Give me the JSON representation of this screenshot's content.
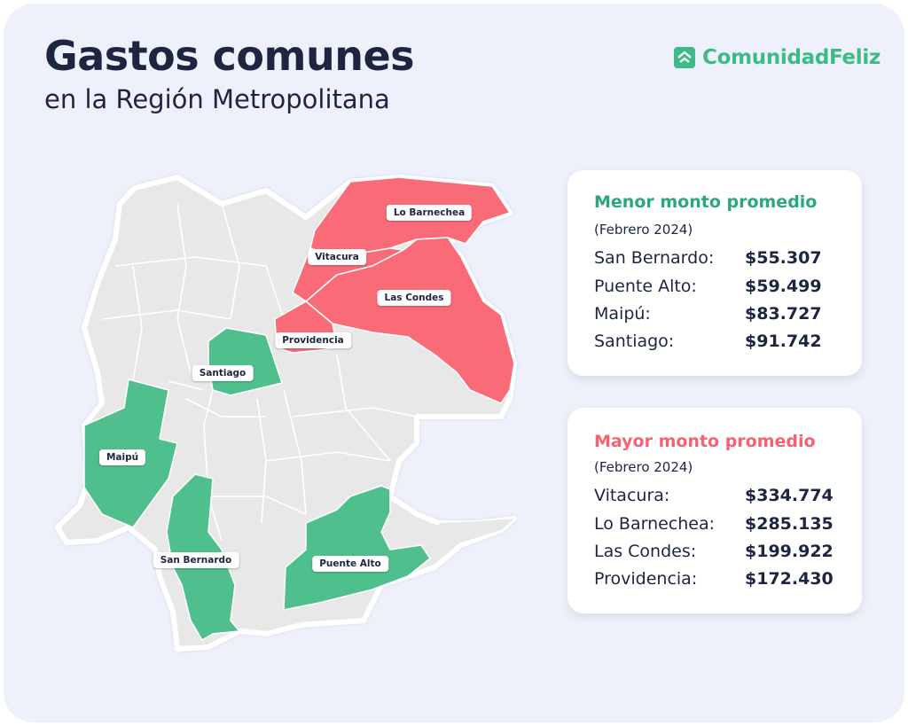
{
  "header": {
    "title": "Gastos comunes",
    "subtitle": "en la Región Metropolitana"
  },
  "brand": {
    "name": "ComunidadFeliz",
    "logo_icon": "house-icon",
    "color": "#3dbb86"
  },
  "colors": {
    "low": "#4fc08d",
    "high": "#fa6b78",
    "neutral": "#e8e8e8",
    "panel_low_title": "#2aa877",
    "panel_high_title": "#f46274"
  },
  "map": {
    "labels": {
      "lo_barnechea": "Lo Barnechea",
      "vitacura": "Vitacura",
      "las_condes": "Las Condes",
      "providencia": "Providencia",
      "santiago": "Santiago",
      "maipu": "Maipú",
      "san_bernardo": "San Bernardo",
      "puente_alto": "Puente Alto"
    }
  },
  "low_panel": {
    "title": "Menor monto promedio",
    "period": "(Febrero 2024)",
    "rows": [
      {
        "name": "San Bernardo:",
        "value": "$55.307"
      },
      {
        "name": "Puente Alto:",
        "value": "$59.499"
      },
      {
        "name": "Maipú:",
        "value": "$83.727"
      },
      {
        "name": "Santiago:",
        "value": "$91.742"
      }
    ]
  },
  "high_panel": {
    "title": "Mayor monto promedio",
    "period": "(Febrero 2024)",
    "rows": [
      {
        "name": "Vitacura:",
        "value": "$334.774"
      },
      {
        "name": "Lo Barnechea:",
        "value": "$285.135"
      },
      {
        "name": "Las Condes:",
        "value": "$199.922"
      },
      {
        "name": "Providencia:",
        "value": "$172.430"
      }
    ]
  }
}
